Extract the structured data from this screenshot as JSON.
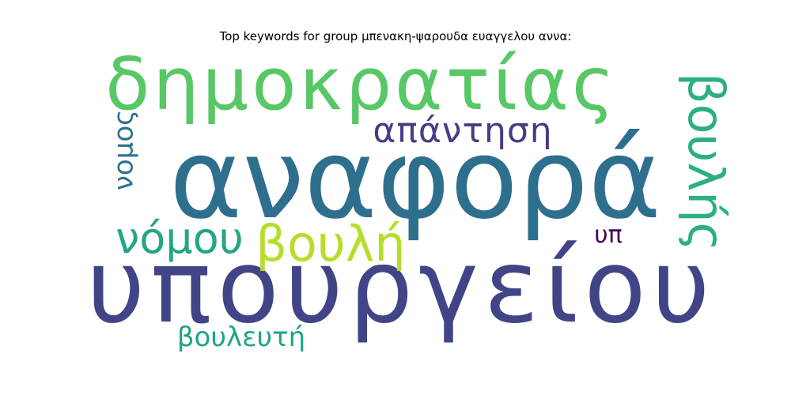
{
  "chart_data": {
    "type": "wordcloud",
    "title": "Top keywords for group μπενακη-ψαρουδα ευαγγελου αννα:",
    "words": [
      {
        "text": "αναφορά",
        "weight": 1.0,
        "color": "#2f6f8e",
        "orientation": "horizontal"
      },
      {
        "text": "υπουργείου",
        "weight": 0.95,
        "color": "#414487",
        "orientation": "horizontal"
      },
      {
        "text": "δημοκρατίας",
        "weight": 0.8,
        "color": "#58c765",
        "orientation": "horizontal"
      },
      {
        "text": "βουλής",
        "weight": 0.5,
        "color": "#2bb07f",
        "orientation": "vertical"
      },
      {
        "text": "βουλή",
        "weight": 0.45,
        "color": "#b5de2b",
        "orientation": "horizontal"
      },
      {
        "text": "νόμου",
        "weight": 0.45,
        "color": "#25a584",
        "orientation": "horizontal"
      },
      {
        "text": "απάντηση",
        "weight": 0.35,
        "color": "#433e85",
        "orientation": "horizontal"
      },
      {
        "text": "νομος",
        "weight": 0.3,
        "color": "#2c728e",
        "orientation": "vertical"
      },
      {
        "text": "βουλευτή",
        "weight": 0.28,
        "color": "#20a486",
        "orientation": "horizontal"
      },
      {
        "text": "υπ",
        "weight": 0.22,
        "color": "#440154",
        "orientation": "horizontal"
      }
    ]
  }
}
